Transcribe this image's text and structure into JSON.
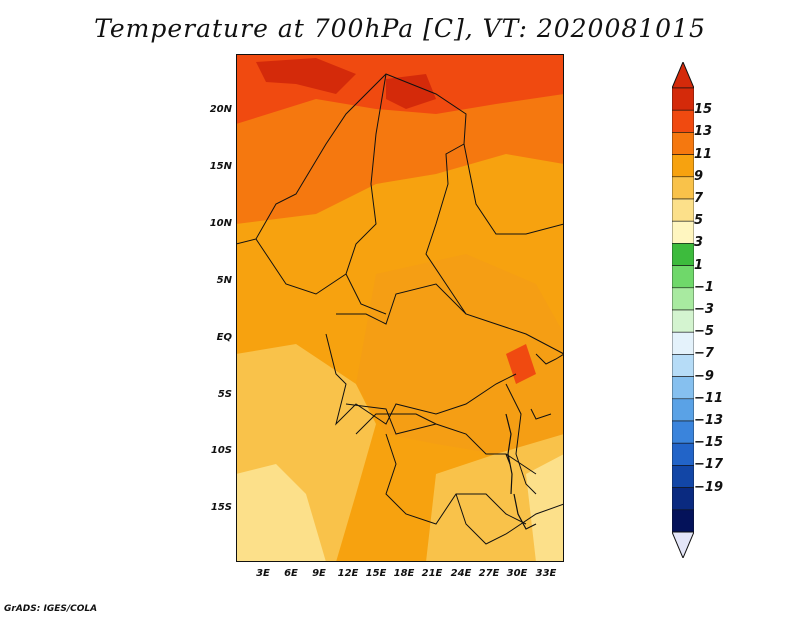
{
  "title": "Temperature at 700hPa [C], VT: 2020081015",
  "credit": "GrADS: IGES/COLA",
  "latitude_ticks": [
    "20N",
    "15N",
    "10N",
    "5N",
    "EQ",
    "5S",
    "10S",
    "15S"
  ],
  "longitude_ticks": [
    "3E",
    "6E",
    "9E",
    "12E",
    "15E",
    "18E",
    "21E",
    "24E",
    "27E",
    "30E",
    "33E"
  ],
  "colorbar": {
    "labels": [
      "15",
      "13",
      "11",
      "9",
      "7",
      "5",
      "3",
      "1",
      "−1",
      "−3",
      "−5",
      "−7",
      "−9",
      "−11",
      "−13",
      "−15",
      "−17",
      "−19"
    ],
    "colors": [
      "#d42a0a",
      "#f04a10",
      "#f5780f",
      "#f7a20f",
      "#f9c24a",
      "#fce08a",
      "#fff6c0",
      "#3dbb3d",
      "#6fd86a",
      "#a8eaa0",
      "#d4f4d0",
      "#e4f2fb",
      "#b6dcf7",
      "#86c0ef",
      "#5aa2e6",
      "#3a84dc",
      "#2264c8",
      "#1246a6",
      "#0a2a80",
      "#04125a"
    ],
    "over_color": "#d42a0a",
    "under_color": "#e4e6f8"
  },
  "map": {
    "lat_range": [
      -20,
      24
    ],
    "lon_range": [
      0,
      35
    ],
    "field": "Temperature at 700hPa",
    "units": "C"
  }
}
